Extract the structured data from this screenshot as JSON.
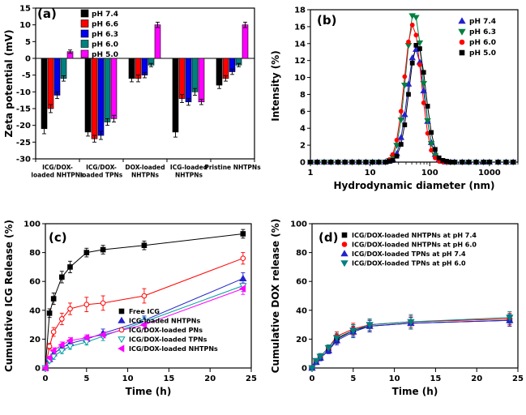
{
  "figure": {
    "background": "#ffffff"
  },
  "chart_data": [
    {
      "id": "a",
      "type": "bar",
      "panel_label": "(a)",
      "ylabel": "Zeta potential (mV)",
      "ylim": [
        -30,
        15
      ],
      "ytick_step": 5,
      "legend_position": "top-left",
      "categories": [
        [
          "ICG/DOX-",
          "loaded NHTPNs"
        ],
        [
          "ICG/DOX-",
          "loaded TPNs"
        ],
        [
          "DOX-loaded",
          "NHTPNs"
        ],
        [
          "ICG-loaded",
          "NHTPNs"
        ],
        [
          "Pristine NHTPNs"
        ]
      ],
      "series": [
        {
          "name": "pH 7.4",
          "color": "#000000",
          "values": [
            -21,
            -22,
            -6,
            -22,
            -8
          ],
          "errors": [
            1.5,
            1.2,
            1.0,
            1.5,
            1.0
          ]
        },
        {
          "name": "pH 6.6",
          "color": "#ff0000",
          "values": [
            -15,
            -24,
            -6,
            -12,
            -6
          ],
          "errors": [
            1.2,
            1.0,
            1.0,
            1.2,
            0.8
          ]
        },
        {
          "name": "pH 6.3",
          "color": "#0000ee",
          "values": [
            -11,
            -23,
            -5,
            -13,
            -4
          ],
          "errors": [
            1.0,
            1.2,
            0.8,
            1.0,
            0.8
          ]
        },
        {
          "name": "pH 6.0",
          "color": "#008080",
          "values": [
            -6,
            -19,
            -2,
            -10,
            -2
          ],
          "errors": [
            0.8,
            1.0,
            0.5,
            1.0,
            0.5
          ]
        },
        {
          "name": "pH 5.0",
          "color": "#ff00ff",
          "values": [
            2,
            -18,
            10,
            -13,
            10
          ],
          "errors": [
            0.5,
            1.0,
            0.8,
            0.8,
            0.8
          ]
        }
      ]
    },
    {
      "id": "b",
      "type": "line",
      "panel_label": "(b)",
      "xlabel": "Hydrodynamic diameter (nm)",
      "ylabel": "Intensity (%)",
      "xlog": true,
      "xlim": [
        1,
        3000
      ],
      "xticks": [
        1,
        10,
        100,
        1000
      ],
      "ylim": [
        0,
        18
      ],
      "ytick_step": 2,
      "legend_position": "top-right",
      "x": [
        1,
        1.3,
        1.7,
        2.2,
        2.9,
        3.8,
        5,
        6.5,
        8.5,
        11,
        14,
        18,
        21,
        24,
        28,
        33,
        38,
        44,
        51,
        59,
        68,
        79,
        92,
        106,
        123,
        143,
        166,
        192,
        223,
        260,
        350,
        450,
        600,
        800,
        1000,
        1400,
        1900,
        2500
      ],
      "series": [
        {
          "name": "pH 7.4",
          "color": "#2222cc",
          "marker": "triangle-up",
          "values": [
            0,
            0,
            0,
            0,
            0,
            0,
            0,
            0,
            0,
            0,
            0,
            0,
            0.1,
            0.3,
            1,
            2.9,
            5.6,
            9.2,
            12.3,
            13.3,
            11.8,
            8.4,
            4.8,
            2.3,
            0.9,
            0.3,
            0.1,
            0,
            0,
            0,
            0,
            0,
            0,
            0,
            0,
            0,
            0,
            0
          ]
        },
        {
          "name": "pH 6.3",
          "color": "#008040",
          "marker": "triangle-down",
          "values": [
            0,
            0,
            0,
            0,
            0,
            0,
            0,
            0,
            0,
            0,
            0,
            0,
            0.2,
            0.6,
            2,
            5,
            9.1,
            13.8,
            17.3,
            17.1,
            14.1,
            9.3,
            4.9,
            2.2,
            0.8,
            0.2,
            0.1,
            0,
            0,
            0,
            0,
            0,
            0,
            0,
            0,
            0,
            0,
            0
          ]
        },
        {
          "name": "pH 6.0",
          "color": "#ff0000",
          "marker": "circle",
          "values": [
            0,
            0,
            0,
            0,
            0,
            0,
            0,
            0,
            0,
            0,
            0,
            0,
            0.3,
            0.9,
            2.6,
            6,
            10.1,
            14.2,
            16.2,
            15,
            11.5,
            7,
            3.4,
            1.4,
            0.5,
            0.1,
            0,
            0,
            0,
            0,
            0,
            0,
            0,
            0,
            0,
            0,
            0,
            0
          ]
        },
        {
          "name": "pH 5.0",
          "color": "#000000",
          "marker": "square",
          "values": [
            0,
            0,
            0,
            0,
            0,
            0,
            0,
            0,
            0,
            0,
            0,
            0,
            0.1,
            0.2,
            0.7,
            2.1,
            4.4,
            8,
            11.7,
            13.8,
            13.4,
            10.6,
            6.6,
            3.5,
            1.5,
            0.5,
            0.2,
            0.1,
            0,
            0,
            0,
            0,
            0,
            0,
            0,
            0,
            0,
            0
          ]
        }
      ]
    },
    {
      "id": "c",
      "type": "line",
      "panel_label": "(c)",
      "xlabel": "Time (h)",
      "ylabel": "Cumulative ICG Release (%)",
      "xlim": [
        0,
        25
      ],
      "xtick_step": 5,
      "ylim": [
        0,
        100
      ],
      "ytick_step": 20,
      "legend_position": "middle-right",
      "x": [
        0,
        0.5,
        1,
        2,
        3,
        5,
        7,
        12,
        24
      ],
      "series": [
        {
          "name": "Free ICG",
          "color": "#000000",
          "marker": "square",
          "values": [
            0,
            38,
            48,
            63,
            70,
            80,
            82,
            85,
            93
          ],
          "errors": [
            0,
            3,
            4,
            4,
            4,
            3,
            3,
            3,
            3
          ]
        },
        {
          "name": "ICG-loaded NHTPNs",
          "color": "#2222cc",
          "marker": "triangle-up",
          "values": [
            0,
            6,
            10,
            14,
            17,
            20,
            24,
            33,
            62
          ],
          "errors": [
            0,
            1,
            2,
            2,
            2,
            2,
            3,
            3,
            4
          ]
        },
        {
          "name": "ICG/DOX-loaded PNs",
          "color": "#ff0000",
          "marker": "circle",
          "open": true,
          "values": [
            0,
            15,
            25,
            34,
            41,
            44,
            45,
            50,
            76
          ],
          "errors": [
            0,
            2,
            3,
            4,
            4,
            5,
            5,
            5,
            4
          ]
        },
        {
          "name": "ICG/DOX-loaded TPNs",
          "color": "#00a0a0",
          "marker": "triangle-down",
          "open": true,
          "values": [
            0,
            5,
            8,
            12,
            15,
            18,
            22,
            32,
            57
          ],
          "errors": [
            0,
            1,
            2,
            2,
            2,
            2,
            3,
            3,
            4
          ]
        },
        {
          "name": "ICG/DOX-loaded NHTPNs",
          "color": "#ff00ff",
          "marker": "triangle-left",
          "values": [
            0,
            7,
            12,
            16,
            19,
            21,
            23,
            30,
            55
          ],
          "errors": [
            0,
            1,
            2,
            2,
            2,
            2,
            2,
            3,
            4
          ]
        }
      ]
    },
    {
      "id": "d",
      "type": "line",
      "panel_label": "(d)",
      "xlabel": "Time (h)",
      "ylabel": "Cumulative DOX release (%)",
      "xlim": [
        0,
        25
      ],
      "xtick_step": 5,
      "ylim": [
        0,
        100
      ],
      "ytick_step": 20,
      "legend_position": "top-left",
      "x": [
        0,
        0.5,
        1,
        2,
        3,
        5,
        7,
        12,
        24
      ],
      "series": [
        {
          "name": "ICG/DOX-loaded NHTPNs at pH 7.4",
          "color": "#000000",
          "marker": "square",
          "values": [
            0,
            4,
            7,
            12,
            20,
            26,
            29,
            31,
            33
          ],
          "errors": [
            0,
            1,
            2,
            2,
            3,
            4,
            4,
            4,
            4
          ]
        },
        {
          "name": "ICG/DOX-loaded NHTPNs at pH 6.0",
          "color": "#ff0000",
          "marker": "circle",
          "values": [
            0,
            5,
            8,
            14,
            22,
            27,
            30,
            32,
            34
          ],
          "errors": [
            0,
            1,
            2,
            2,
            3,
            4,
            4,
            4,
            4
          ]
        },
        {
          "name": "ICG/DOX-loaded TPNs at pH 7.4",
          "color": "#2222cc",
          "marker": "triangle-up",
          "values": [
            0,
            4,
            7,
            12,
            19,
            25,
            29,
            31,
            33
          ],
          "errors": [
            0,
            1,
            2,
            2,
            3,
            4,
            4,
            4,
            4
          ]
        },
        {
          "name": "ICG/DOX-loaded TPNs at pH 6.0",
          "color": "#008080",
          "marker": "triangle-down",
          "values": [
            0,
            5,
            8,
            14,
            21,
            26,
            30,
            32,
            35
          ],
          "errors": [
            0,
            1,
            2,
            2,
            3,
            4,
            4,
            5,
            4
          ]
        }
      ]
    }
  ]
}
